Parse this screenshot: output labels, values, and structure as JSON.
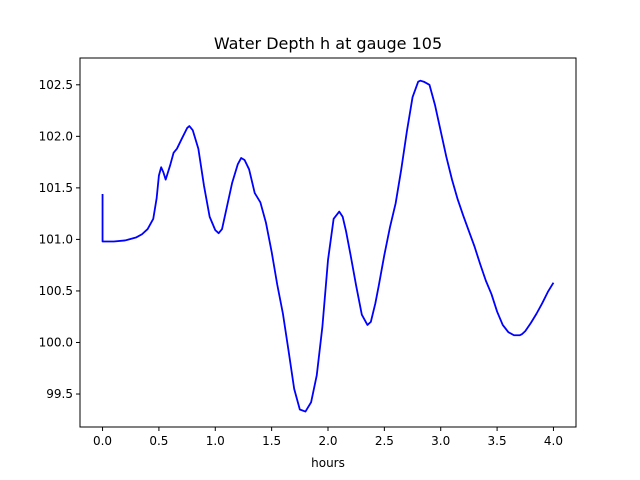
{
  "chart_data": {
    "type": "line",
    "title": "Water Depth h at gauge 105",
    "xlabel": "hours",
    "ylabel": "",
    "xlim": [
      -0.2,
      4.2
    ],
    "ylim": [
      99.18,
      102.76
    ],
    "grid": false,
    "colors": {
      "line": "#0000ff",
      "axes": "#000000",
      "background": "#ffffff"
    },
    "x_ticks": [
      0.0,
      0.5,
      1.0,
      1.5,
      2.0,
      2.5,
      3.0,
      3.5,
      4.0
    ],
    "x_tick_labels": [
      "0.0",
      "0.5",
      "1.0",
      "1.5",
      "2.0",
      "2.5",
      "3.0",
      "3.5",
      "4.0"
    ],
    "y_ticks": [
      99.5,
      100.0,
      100.5,
      101.0,
      101.5,
      102.0,
      102.5
    ],
    "y_tick_labels": [
      "99.5",
      "100.0",
      "100.5",
      "101.0",
      "101.5",
      "102.0",
      "102.5"
    ],
    "series": [
      {
        "x": [
          0.0,
          0.0,
          0.1,
          0.2,
          0.3,
          0.35,
          0.4,
          0.45,
          0.48,
          0.5,
          0.52,
          0.54,
          0.56,
          0.6,
          0.63,
          0.66,
          0.7,
          0.75,
          0.77,
          0.8,
          0.85,
          0.9,
          0.95,
          1.0,
          1.03,
          1.06,
          1.1,
          1.15,
          1.2,
          1.23,
          1.26,
          1.3,
          1.35,
          1.4,
          1.45,
          1.5,
          1.55,
          1.6,
          1.65,
          1.7,
          1.75,
          1.8,
          1.85,
          1.9,
          1.95,
          2.0,
          2.05,
          2.1,
          2.13,
          2.16,
          2.2,
          2.25,
          2.3,
          2.35,
          2.38,
          2.42,
          2.45,
          2.5,
          2.55,
          2.6,
          2.65,
          2.7,
          2.75,
          2.8,
          2.82,
          2.85,
          2.9,
          2.95,
          3.0,
          3.05,
          3.1,
          3.15,
          3.2,
          3.25,
          3.3,
          3.35,
          3.4,
          3.45,
          3.5,
          3.55,
          3.6,
          3.65,
          3.7,
          3.72,
          3.75,
          3.8,
          3.85,
          3.9,
          3.95,
          4.0
        ],
        "y": [
          101.44,
          100.98,
          100.98,
          100.99,
          101.02,
          101.05,
          101.1,
          101.2,
          101.4,
          101.62,
          101.7,
          101.65,
          101.58,
          101.72,
          101.84,
          101.88,
          101.97,
          102.08,
          102.1,
          102.06,
          101.88,
          101.52,
          101.22,
          101.09,
          101.06,
          101.1,
          101.3,
          101.55,
          101.73,
          101.79,
          101.77,
          101.68,
          101.45,
          101.36,
          101.16,
          100.88,
          100.56,
          100.28,
          99.92,
          99.55,
          99.35,
          99.33,
          99.42,
          99.68,
          100.15,
          100.8,
          101.2,
          101.27,
          101.22,
          101.08,
          100.85,
          100.55,
          100.27,
          100.17,
          100.2,
          100.38,
          100.55,
          100.85,
          101.12,
          101.35,
          101.68,
          102.05,
          102.38,
          102.53,
          102.54,
          102.53,
          102.5,
          102.3,
          102.05,
          101.8,
          101.58,
          101.39,
          101.23,
          101.08,
          100.93,
          100.76,
          100.6,
          100.47,
          100.3,
          100.17,
          100.1,
          100.07,
          100.07,
          100.08,
          100.11,
          100.19,
          100.28,
          100.38,
          100.49,
          100.58
        ]
      }
    ]
  }
}
